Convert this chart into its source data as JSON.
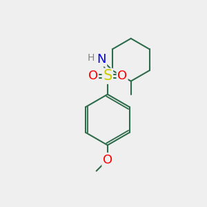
{
  "background_color": "#efefef",
  "bond_color": "#2d6b4a",
  "bond_width": 1.5,
  "atom_colors": {
    "S": "#cccc00",
    "O": "#ff0000",
    "N": "#0000ee",
    "H": "#808080"
  },
  "font_size_S": 15,
  "font_size_O": 13,
  "font_size_N": 13,
  "font_size_H": 10,
  "xlim": [
    0,
    10
  ],
  "ylim": [
    0,
    10
  ]
}
